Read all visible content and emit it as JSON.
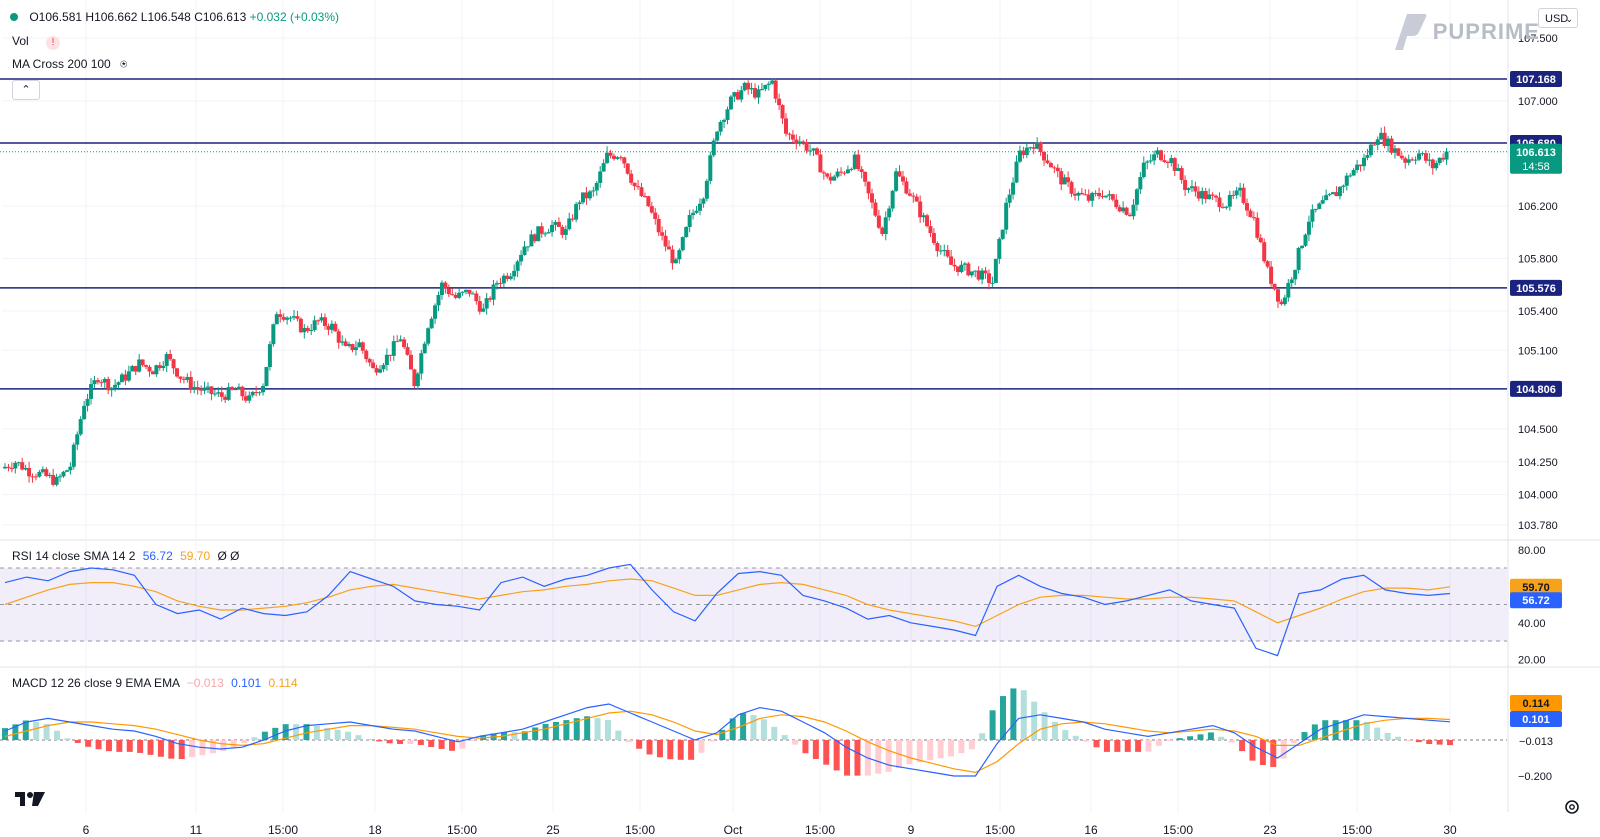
{
  "legend": {
    "ohlc_open": "O106.581",
    "ohlc_high": "H106.662",
    "ohlc_low": "L106.548",
    "ohlc_close": "C106.613",
    "ohlc_change": "+0.032 (+0.03%)",
    "vol_label": "Vol",
    "ma_label": "MA Cross 200 100"
  },
  "rsi_legend": {
    "label": "RSI 14 close SMA 14 2",
    "rsi_value": "56.72",
    "sma_value": "59.70",
    "extra": "Ø Ø"
  },
  "macd_legend": {
    "label": "MACD 12 26 close 9 EMA EMA",
    "hist_value": "−0.013",
    "macd_value": "0.101",
    "signal_value": "0.114"
  },
  "brand": {
    "name": "PUPRIME"
  },
  "currency": "USD",
  "colors": {
    "up": "#089981",
    "down": "#f23645",
    "level_line": "#1a237e",
    "rsi_line": "#2962ff",
    "rsi_sma": "#f7a21b",
    "macd_line": "#2962ff",
    "signal_line": "#ff9800"
  },
  "chart_data": {
    "type": "candlestick",
    "symbol_price_axis": {
      "ticks": [
        "107.500",
        "107.000",
        "106.200",
        "105.800",
        "105.400",
        "105.100",
        "104.500",
        "104.250",
        "104.000",
        "103.780"
      ],
      "tick_values": [
        107.5,
        107.0,
        106.2,
        105.8,
        105.4,
        105.1,
        104.5,
        104.25,
        104.0,
        103.78
      ]
    },
    "horizontal_levels": [
      {
        "label": "107.168",
        "value": 107.168
      },
      {
        "label": "106.680",
        "value": 106.68
      },
      {
        "label": "105.576",
        "value": 105.576
      },
      {
        "label": "104.806",
        "value": 104.806
      }
    ],
    "last_price": {
      "label": "106.613",
      "value": 106.613,
      "countdown": "14:58"
    },
    "x_labels": [
      "6",
      "11",
      "15:00",
      "18",
      "15:00",
      "25",
      "15:00",
      "Oct",
      "15:00",
      "9",
      "15:00",
      "16",
      "15:00",
      "23",
      "15:00",
      "30"
    ],
    "ohlc_path": [
      104.2,
      104.25,
      104.18,
      104.15,
      104.1,
      104.22,
      104.7,
      104.9,
      104.82,
      104.9,
      105.0,
      104.95,
      105.05,
      104.9,
      104.82,
      104.78,
      104.75,
      104.8,
      104.72,
      104.85,
      105.4,
      105.35,
      105.25,
      105.32,
      105.28,
      105.1,
      105.15,
      104.95,
      105.05,
      105.2,
      104.85,
      105.3,
      105.6,
      105.5,
      105.55,
      105.4,
      105.62,
      105.7,
      105.9,
      106.0,
      106.05,
      106.0,
      106.25,
      106.3,
      106.58,
      106.6,
      106.35,
      106.2,
      105.95,
      105.75,
      106.1,
      106.3,
      106.8,
      107.0,
      107.1,
      107.05,
      107.15,
      106.75,
      106.7,
      106.6,
      106.4,
      106.45,
      106.55,
      106.28,
      106.0,
      106.45,
      106.3,
      106.1,
      105.9,
      105.75,
      105.72,
      105.68,
      105.62,
      106.2,
      106.6,
      106.68,
      106.55,
      106.4,
      106.3,
      106.25,
      106.3,
      106.22,
      106.15,
      106.5,
      106.6,
      106.55,
      106.35,
      106.3,
      106.25,
      106.22,
      106.3,
      106.1,
      105.7,
      105.45,
      105.75,
      106.1,
      106.22,
      106.3,
      106.45,
      106.55,
      106.75,
      106.65,
      106.55,
      106.6,
      106.5,
      106.613
    ],
    "rsi": {
      "y_ticks": [
        "80.00",
        "40.00",
        "20.00"
      ],
      "y_tick_values": [
        80,
        40,
        20
      ],
      "bands": [
        70,
        50,
        30
      ],
      "rsi_path": [
        62,
        65,
        63,
        68,
        70,
        69,
        66,
        50,
        45,
        47,
        42,
        48,
        45,
        44,
        46,
        55,
        68,
        64,
        60,
        52,
        50,
        49,
        47,
        62,
        65,
        60,
        64,
        66,
        70,
        72,
        58,
        46,
        41,
        56,
        67,
        68,
        66,
        55,
        52,
        48,
        42,
        44,
        40,
        38,
        36,
        33,
        60,
        66,
        60,
        56,
        54,
        50,
        52,
        55,
        58,
        52,
        50,
        48,
        26,
        22,
        56,
        58,
        64,
        66,
        58,
        56,
        55,
        56
      ],
      "sma_path": [
        50,
        54,
        58,
        61,
        62,
        62,
        60,
        57,
        52,
        49,
        47,
        47,
        48,
        49,
        51,
        54,
        58,
        60,
        61,
        59,
        57,
        55,
        53,
        55,
        57,
        58,
        60,
        61,
        63,
        64,
        63,
        59,
        55,
        55,
        58,
        61,
        62,
        61,
        58,
        55,
        50,
        47,
        45,
        43,
        41,
        38,
        44,
        50,
        54,
        55,
        55,
        54,
        53,
        53,
        54,
        54,
        53,
        52,
        46,
        40,
        44,
        48,
        53,
        57,
        59,
        59,
        58,
        59.7
      ],
      "last_rsi": "56.72",
      "last_sma": "59.70"
    },
    "macd": {
      "y_ticks": [
        "−0.200"
      ],
      "y_tick_values": [
        -0.2
      ],
      "macd_path": [
        0.05,
        0.1,
        0.12,
        0.1,
        0.08,
        0.06,
        0.05,
        0.02,
        -0.02,
        -0.04,
        -0.05,
        -0.04,
        0.0,
        0.05,
        0.08,
        0.09,
        0.1,
        0.08,
        0.06,
        0.05,
        0.02,
        -0.01,
        0.02,
        0.04,
        0.06,
        0.1,
        0.14,
        0.18,
        0.2,
        0.15,
        0.1,
        0.05,
        0.0,
        0.04,
        0.14,
        0.18,
        0.16,
        0.1,
        0.04,
        -0.04,
        -0.1,
        -0.14,
        -0.16,
        -0.18,
        -0.2,
        -0.2,
        -0.02,
        0.12,
        0.14,
        0.12,
        0.1,
        0.06,
        0.04,
        0.02,
        0.04,
        0.06,
        0.08,
        0.04,
        -0.04,
        -0.1,
        -0.02,
        0.06,
        0.1,
        0.14,
        0.13,
        0.12,
        0.11,
        0.101
      ],
      "signal_path": [
        0.02,
        0.05,
        0.08,
        0.1,
        0.1,
        0.09,
        0.08,
        0.06,
        0.03,
        0.0,
        -0.02,
        -0.03,
        -0.02,
        0.01,
        0.04,
        0.06,
        0.08,
        0.08,
        0.07,
        0.06,
        0.04,
        0.02,
        0.01,
        0.02,
        0.04,
        0.06,
        0.09,
        0.12,
        0.15,
        0.16,
        0.14,
        0.1,
        0.05,
        0.03,
        0.07,
        0.12,
        0.14,
        0.13,
        0.1,
        0.05,
        -0.01,
        -0.06,
        -0.1,
        -0.13,
        -0.16,
        -0.18,
        -0.12,
        -0.02,
        0.06,
        0.09,
        0.1,
        0.09,
        0.07,
        0.05,
        0.04,
        0.05,
        0.06,
        0.05,
        0.02,
        -0.03,
        -0.03,
        0.01,
        0.05,
        0.09,
        0.11,
        0.12,
        0.12,
        0.114
      ],
      "last_hist": "−0.013",
      "last_macd": "0.101",
      "last_signal": "0.114"
    }
  }
}
